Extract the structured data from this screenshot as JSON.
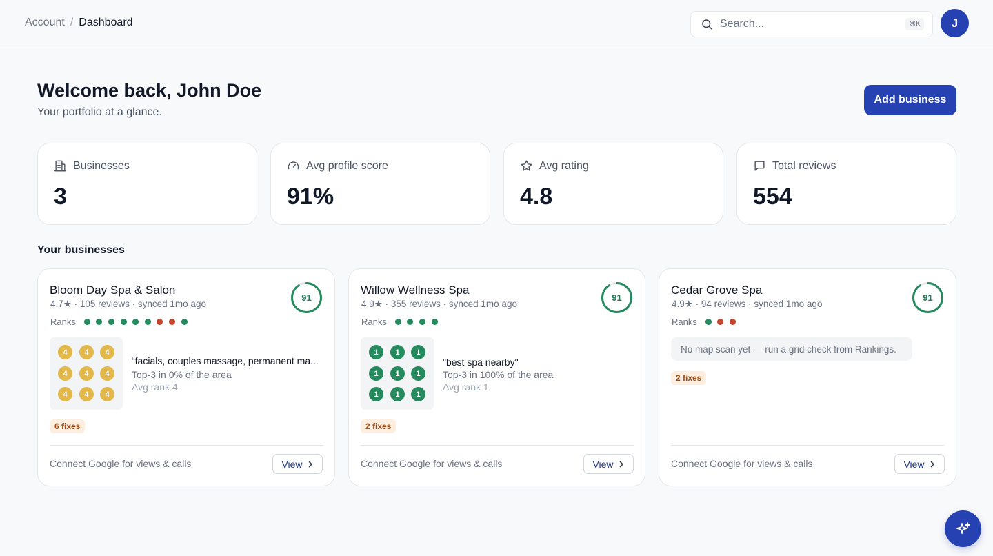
{
  "breadcrumb": {
    "parent": "Account",
    "separator": "/",
    "current": "Dashboard"
  },
  "search": {
    "placeholder": "Search...",
    "shortcut": "⌘K"
  },
  "user": {
    "initial": "J"
  },
  "header": {
    "title": "Welcome back, John Doe",
    "subtitle": "Your portfolio at a glance.",
    "add_label": "Add business"
  },
  "stats": [
    {
      "label": "Businesses",
      "value": "3",
      "icon": "building-icon"
    },
    {
      "label": "Avg profile score",
      "value": "91%",
      "icon": "gauge-icon"
    },
    {
      "label": "Avg rating",
      "value": "4.8",
      "icon": "star-icon"
    },
    {
      "label": "Total reviews",
      "value": "554",
      "icon": "message-icon"
    }
  ],
  "section_title": "Your businesses",
  "colors": {
    "accent": "#2541b2",
    "good": "#258a5e",
    "bad": "#c4452e",
    "warn": "#e2b84a"
  },
  "businesses": [
    {
      "name": "Bloom Day Spa & Salon",
      "meta": "4.7★ · 105 reviews · synced 1mo ago",
      "score": "91",
      "score_pct": 0.91,
      "ranks_label": "Ranks",
      "ranks": [
        "good",
        "good",
        "good",
        "good",
        "good",
        "good",
        "bad",
        "bad",
        "good"
      ],
      "grid": {
        "value": "4",
        "tone": "yellow"
      },
      "keyword": "“facials, couples massage, permanent ma...",
      "area": "Top-3 in 0% of the area",
      "avg": "Avg rank 4",
      "fixes": "6 fixes",
      "connect": "Connect Google for views & calls",
      "view_label": "View"
    },
    {
      "name": "Willow Wellness Spa",
      "meta": "4.9★ · 355 reviews · synced 1mo ago",
      "score": "91",
      "score_pct": 0.91,
      "ranks_label": "Ranks",
      "ranks": [
        "good",
        "good",
        "good",
        "good"
      ],
      "grid": {
        "value": "1",
        "tone": "green"
      },
      "keyword": "\"best spa nearby\"",
      "area": "Top-3 in 100% of the area",
      "avg": "Avg rank 1",
      "fixes": "2 fixes",
      "connect": "Connect Google for views & calls",
      "view_label": "View"
    },
    {
      "name": "Cedar Grove Spa",
      "meta": "4.9★ · 94 reviews · synced 1mo ago",
      "score": "91",
      "score_pct": 0.91,
      "ranks_label": "Ranks",
      "ranks": [
        "good",
        "bad",
        "bad"
      ],
      "no_scan": "No map scan yet — run a grid check from Rankings.",
      "fixes": "2 fixes",
      "connect": "Connect Google for views & calls",
      "view_label": "View"
    }
  ]
}
